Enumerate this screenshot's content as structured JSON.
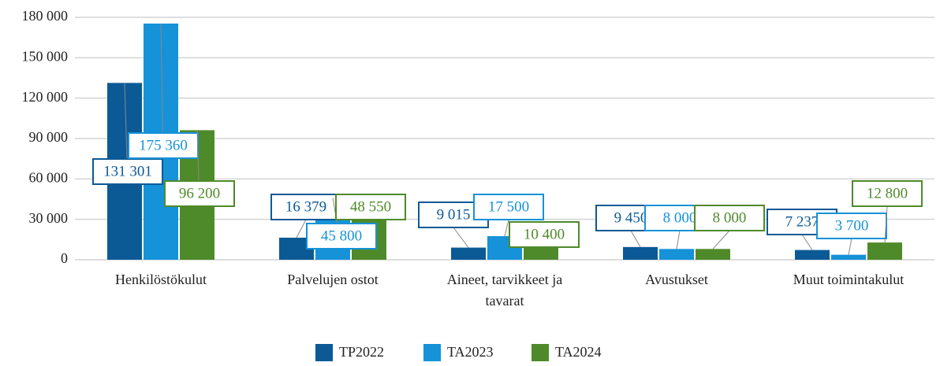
{
  "chart_data": {
    "type": "bar",
    "categories": [
      "Henkilöstökulut",
      "Palvelujen ostot",
      "Aineet, tarvikkeet ja tavarat",
      "Avustukset",
      "Muut toimintakulut"
    ],
    "series": [
      {
        "name": "TP2022",
        "color": "#0b5a96",
        "values": [
          131301,
          16379,
          9015,
          9450,
          7237
        ],
        "value_labels": [
          "131 301",
          "16 379",
          "9 015",
          "9 450",
          "7 237"
        ]
      },
      {
        "name": "TA2023",
        "color": "#1592d8",
        "values": [
          175360,
          45800,
          17500,
          8000,
          3700
        ],
        "value_labels": [
          "175 360",
          "45 800",
          "17 500",
          "8 000",
          "3 700"
        ]
      },
      {
        "name": "TA2024",
        "color": "#4f8a2a",
        "values": [
          96200,
          48550,
          10400,
          8000,
          12800
        ],
        "value_labels": [
          "96 200",
          "48 550",
          "10 400",
          "8 000",
          "12 800"
        ]
      }
    ],
    "ylim": [
      0,
      180000
    ],
    "yticks": [
      0,
      {
        "value": 30000,
        "label": "30 000"
      },
      {
        "value": 60000,
        "label": "60 000"
      },
      {
        "value": 90000,
        "label": "90 000"
      },
      {
        "value": 120000,
        "label": "120 000"
      },
      {
        "value": 150000,
        "label": "150 000"
      },
      {
        "value": 180000,
        "label": "180 000"
      }
    ],
    "grid": true,
    "legend": "bottom"
  }
}
